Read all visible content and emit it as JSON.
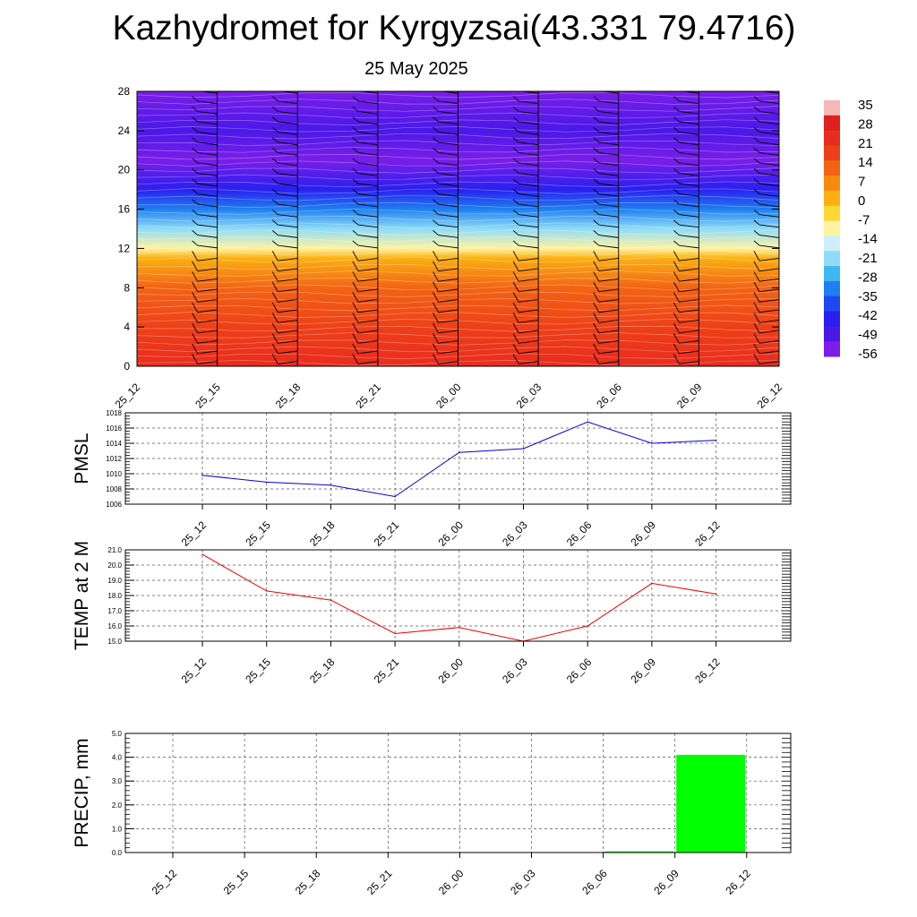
{
  "page": {
    "title": "Kazhydromet for Kyrgyzsai(43.331 79.4716)",
    "subtitle": "25 May 2025"
  },
  "colors": {
    "pmsl_line": "#0000dd",
    "temp_line": "#ee0000",
    "precip_bar": "#00ff00",
    "wind_barb": "#000000",
    "grid": "#555555"
  },
  "chart_data": [
    {
      "type": "heatmap",
      "description_tag": "vertical temperature cross-section with wind barbs",
      "x_ticks": [
        "25_12",
        "25_15",
        "25_18",
        "25_21",
        "26_00",
        "26_03",
        "26_06",
        "26_09",
        "26_12"
      ],
      "y_ticks": [
        0,
        4,
        8,
        12,
        16,
        20,
        24,
        28
      ],
      "ylim": [
        0,
        28
      ],
      "colorbar_labels": [
        "35",
        "28",
        "21",
        "14",
        "7",
        "0",
        "-7",
        "-14",
        "-21",
        "-28",
        "-35",
        "-42",
        "-49",
        "-56"
      ],
      "colorbar_colors": [
        "#f4b8b8",
        "#e02020",
        "#e82c1e",
        "#ee4018",
        "#f26414",
        "#f68a10",
        "#fbb012",
        "#fdd835",
        "#fff3a0",
        "#cfeefc",
        "#8fdcf8",
        "#3fb8f0",
        "#1e7ff0",
        "#1e48f0",
        "#2a1ff0",
        "#4a18e8",
        "#7a1ee8"
      ],
      "temperature_profile": [
        {
          "level": 0,
          "temp": 25
        },
        {
          "level": 4,
          "temp": 20
        },
        {
          "level": 8,
          "temp": 12
        },
        {
          "level": 11,
          "temp": 2
        },
        {
          "level": 12,
          "temp": -12
        },
        {
          "level": 14,
          "temp": -22
        },
        {
          "level": 16,
          "temp": -35
        },
        {
          "level": 18,
          "temp": -50
        },
        {
          "level": 21,
          "temp": -58
        },
        {
          "level": 24,
          "temp": -54
        },
        {
          "level": 28,
          "temp": -60
        }
      ],
      "grid": false
    },
    {
      "type": "line",
      "ylabel": "PMSL",
      "x": [
        "25_12",
        "25_15",
        "25_18",
        "25_21",
        "26_00",
        "26_03",
        "26_06",
        "26_09",
        "26_12"
      ],
      "values": [
        1009.8,
        1008.9,
        1008.5,
        1007.0,
        1012.8,
        1013.3,
        1016.8,
        1014.0,
        1014.4
      ],
      "ylim": [
        1006,
        1018
      ],
      "y_ticks": [
        "1006",
        "1008",
        "1010",
        "1012",
        "1014",
        "1016",
        "1018"
      ],
      "grid": true
    },
    {
      "type": "line",
      "ylabel": "TEMP at 2 M",
      "x": [
        "25_12",
        "25_15",
        "25_18",
        "25_21",
        "26_00",
        "26_03",
        "26_06",
        "26_09",
        "26_12"
      ],
      "values": [
        20.7,
        18.3,
        17.7,
        15.5,
        15.9,
        15.0,
        16.0,
        18.8,
        18.1
      ],
      "ylim": [
        15.0,
        21.0
      ],
      "y_ticks": [
        "15.0",
        "16.0",
        "17.0",
        "18.0",
        "19.0",
        "20.0",
        "21.0"
      ],
      "grid": true
    },
    {
      "type": "bar",
      "ylabel": "PRECIP, mm",
      "categories": [
        "25_12",
        "25_15",
        "25_18",
        "25_21",
        "26_00",
        "26_03",
        "26_06",
        "26_09",
        "26_12"
      ],
      "values": [
        0,
        0,
        0,
        0,
        0,
        0,
        0.05,
        4.1,
        0
      ],
      "ylim": [
        0,
        5.0
      ],
      "y_ticks": [
        "0.0",
        "1.0",
        "2.0",
        "3.0",
        "4.0",
        "5.0"
      ],
      "grid": true
    }
  ]
}
